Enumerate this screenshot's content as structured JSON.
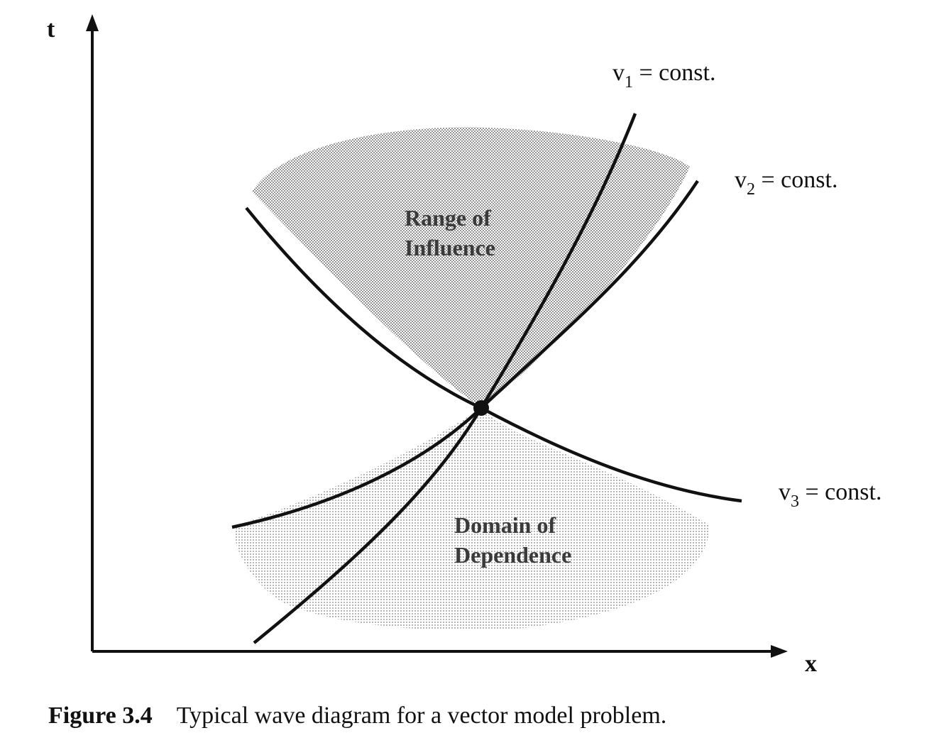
{
  "axes": {
    "x_label": "x",
    "t_label": "t"
  },
  "characteristics": [
    {
      "symbol": "v",
      "subscript": "1",
      "rest": " = const."
    },
    {
      "symbol": "v",
      "subscript": "2",
      "rest": " = const."
    },
    {
      "symbol": "v",
      "subscript": "3",
      "rest": " = const."
    }
  ],
  "regions": {
    "range_of_influence": [
      "Range of",
      "Influence"
    ],
    "domain_of_dependence": [
      "Domain of",
      "Dependence"
    ]
  },
  "caption": {
    "number": "Figure 3.4",
    "text": "Typical wave diagram for a vector model problem."
  },
  "colors": {
    "ink": "#111111",
    "shading_upper": "#9a9a9a",
    "shading_lower": "#c8c8c8"
  }
}
